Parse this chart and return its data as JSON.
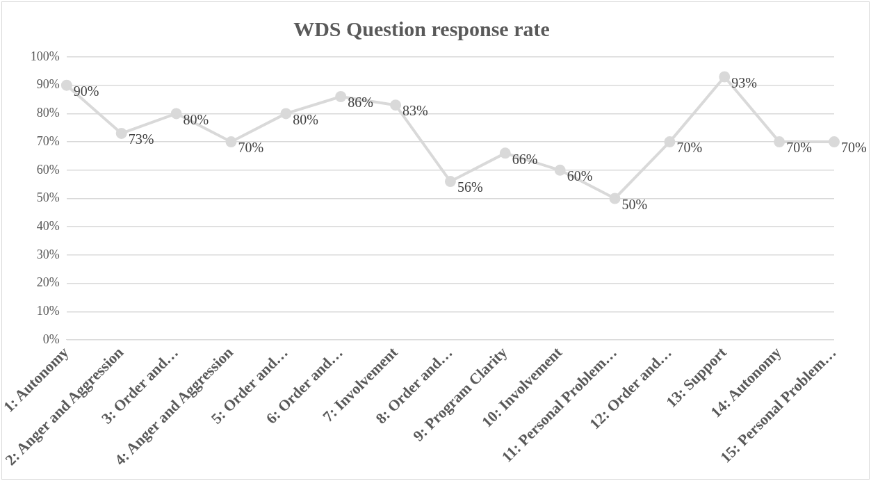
{
  "chart_data": {
    "type": "line",
    "title": "WDS Question response rate",
    "categories": [
      "1: Autonomy",
      "2: Anger and Aggression",
      "3: Order and…",
      "4: Anger and Aggression",
      "5: Order and…",
      "6: Order and…",
      "7: Involvement",
      "8: Order and…",
      "9: Program Clarity",
      "10: Involvement",
      "11: Personal Problem…",
      "12: Order and…",
      "13: Support",
      "14: Autonomy",
      "15: Personal Problem…"
    ],
    "series": [
      {
        "color": "#d9d9d9",
        "values": [
          90,
          73,
          80,
          70,
          80,
          86,
          83,
          56,
          66,
          60,
          50,
          70,
          93,
          70,
          70
        ],
        "value_labels": [
          "90%",
          "73%",
          "80%",
          "70%",
          "80%",
          "86%",
          "83%",
          "56%",
          "66%",
          "60%",
          "50%",
          "70%",
          "93%",
          "70%",
          "70%"
        ]
      }
    ],
    "ylim": [
      0,
      100
    ],
    "yticks": [
      {
        "value": 0,
        "label": "0%"
      },
      {
        "value": 10,
        "label": "10%"
      },
      {
        "value": 20,
        "label": "20%"
      },
      {
        "value": 30,
        "label": "30%"
      },
      {
        "value": 40,
        "label": "40%"
      },
      {
        "value": 50,
        "label": "50%"
      },
      {
        "value": 60,
        "label": "60%"
      },
      {
        "value": 70,
        "label": "70%"
      },
      {
        "value": 80,
        "label": "80%"
      },
      {
        "value": 90,
        "label": "90%"
      },
      {
        "value": 100,
        "label": "100%"
      }
    ],
    "grid": "y",
    "legend": false,
    "marker": "circle",
    "line_style": "solid"
  }
}
